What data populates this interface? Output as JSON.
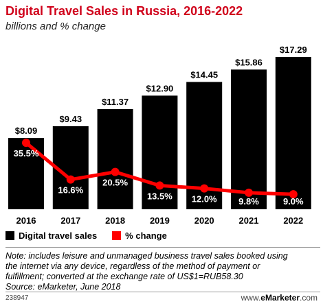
{
  "header": {
    "title": "Digital Travel Sales in Russia, 2016-2022",
    "subtitle": "billions and % change"
  },
  "legend": {
    "bars_label": "Digital travel sales",
    "line_label": "% change"
  },
  "colors": {
    "bar": "#000000",
    "line": "#ff0000",
    "title": "#d0021b"
  },
  "chart_data": {
    "type": "bar",
    "title": "Digital Travel Sales in Russia, 2016-2022",
    "subtitle": "billions and % change",
    "categories": [
      "2016",
      "2017",
      "2018",
      "2019",
      "2020",
      "2021",
      "2022"
    ],
    "series": [
      {
        "name": "Digital travel sales",
        "type": "bar",
        "values": [
          8.09,
          9.43,
          11.37,
          12.9,
          14.45,
          15.86,
          17.29
        ],
        "labels": [
          "$8.09",
          "$9.43",
          "$11.37",
          "$12.90",
          "$14.45",
          "$15.86",
          "$17.29"
        ]
      },
      {
        "name": "% change",
        "type": "line",
        "values": [
          35.5,
          16.6,
          20.5,
          13.5,
          12.0,
          9.8,
          9.0
        ],
        "labels": [
          "35.5%",
          "16.6%",
          "20.5%",
          "13.5%",
          "12.0%",
          "9.8%",
          "9.0%"
        ]
      }
    ],
    "legend_position": "bottom-left",
    "grid": false
  },
  "note": {
    "line1": "Note: includes leisure and unmanaged business travel sales booked using",
    "line2": "the internet via any device, regardless of the method of payment or",
    "line3": "fulfillment; converted at the exchange rate of US$1=RUB58.30",
    "source": "Source: eMarketer, June 2018"
  },
  "footer": {
    "id": "238947",
    "brand_prefix": "www.",
    "brand_name": "eMarketer",
    "brand_suffix": ".com"
  }
}
